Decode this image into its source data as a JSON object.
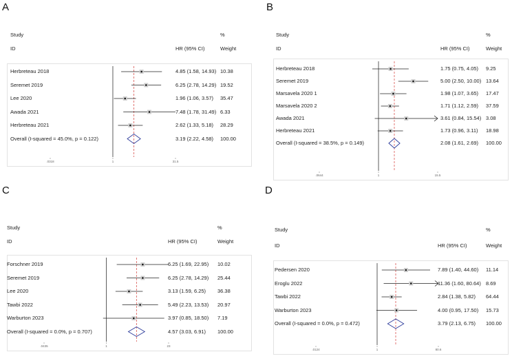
{
  "chart_data": [
    {
      "panel": "A",
      "type": "forest",
      "headers": {
        "study": "Study",
        "id": "ID",
        "hr": "HR (95% CI)",
        "pct": "%",
        "weight": "Weight"
      },
      "axis": {
        "ticks": [
          0.0318,
          1,
          31.5
        ],
        "tick_labels": [
          ".0318",
          "1",
          "31.5"
        ],
        "scale": "log"
      },
      "pooled_hr": 3.19,
      "studies": [
        {
          "name": "Herbreteau 2018",
          "hr": 4.85,
          "lo": 1.58,
          "hi": 14.93,
          "text": "4.85 (1.58, 14.93)",
          "weight": "10.38"
        },
        {
          "name": "Seremet 2019",
          "hr": 6.25,
          "lo": 2.78,
          "hi": 14.29,
          "text": "6.25 (2.78, 14.29)",
          "weight": "19.52"
        },
        {
          "name": "Lee 2020",
          "hr": 1.96,
          "lo": 1.06,
          "hi": 3.57,
          "text": "1.96 (1.06, 3.57)",
          "weight": "35.47"
        },
        {
          "name": "Awada 2021",
          "hr": 7.48,
          "lo": 1.78,
          "hi": 31.49,
          "text": "7.48 (1.78, 31.49)",
          "weight": "6.33"
        },
        {
          "name": "Herbreteau 2021",
          "hr": 2.62,
          "lo": 1.33,
          "hi": 5.18,
          "text": "2.62 (1.33, 5.18)",
          "weight": "28.29"
        }
      ],
      "overall": {
        "name": "Overall  (I-squared = 45.0%, p = 0.122)",
        "hr": 3.19,
        "lo": 2.22,
        "hi": 4.58,
        "text": "3.19 (2.22, 4.58)",
        "weight": "100.00"
      }
    },
    {
      "panel": "B",
      "type": "forest",
      "headers": {
        "study": "Study",
        "id": "ID",
        "hr": "HR (95% CI)",
        "pct": "%",
        "weight": "Weight"
      },
      "axis": {
        "ticks": [
          0.0644,
          1,
          15.5
        ],
        "tick_labels": [
          ".0644",
          "1",
          "15.5"
        ],
        "scale": "log"
      },
      "pooled_hr": 2.08,
      "studies": [
        {
          "name": "Herbreteau 2018",
          "hr": 1.75,
          "lo": 0.75,
          "hi": 4.05,
          "text": "1.75 (0.75, 4.05)",
          "weight": "9.25"
        },
        {
          "name": "Seremet 2019",
          "hr": 5.0,
          "lo": 2.5,
          "hi": 10.0,
          "text": "5.00 (2.50, 10.00)",
          "weight": "13.64"
        },
        {
          "name": "Marsavela 2020 1",
          "hr": 1.98,
          "lo": 1.07,
          "hi": 3.65,
          "text": "1.98 (1.07, 3.65)",
          "weight": "17.47"
        },
        {
          "name": "Marsavela 2020 2",
          "hr": 1.71,
          "lo": 1.12,
          "hi": 2.59,
          "text": "1.71 (1.12, 2.59)",
          "weight": "37.59"
        },
        {
          "name": "Awada 2021",
          "hr": 3.61,
          "lo": 0.84,
          "hi": 15.54,
          "text": "3.61 (0.84, 15.54)",
          "weight": "3.08"
        },
        {
          "name": "Herbreteau 2021",
          "hr": 1.73,
          "lo": 0.96,
          "hi": 3.11,
          "text": "1.73 (0.96, 3.11)",
          "weight": "18.98"
        }
      ],
      "overall": {
        "name": "Overall  (I-squared = 38.5%, p = 0.149)",
        "hr": 2.08,
        "lo": 1.61,
        "hi": 2.69,
        "text": "2.08 (1.61, 2.69)",
        "weight": "100.00"
      }
    },
    {
      "panel": "C",
      "type": "forest",
      "headers": {
        "study": "Study",
        "id": "ID",
        "hr": "HR (95% CI)",
        "pct": "%",
        "weight": "Weight"
      },
      "axis": {
        "ticks": [
          0.0435,
          1,
          23
        ],
        "tick_labels": [
          ".0435",
          "1",
          "23"
        ],
        "scale": "log"
      },
      "pooled_hr": 4.57,
      "studies": [
        {
          "name": "Forschner 2019",
          "hr": 6.25,
          "lo": 1.69,
          "hi": 22.95,
          "text": "6.25 (1.69, 22.95)",
          "weight": "10.02"
        },
        {
          "name": "Seremet 2019",
          "hr": 6.25,
          "lo": 2.78,
          "hi": 14.29,
          "text": "6.25 (2.78, 14.29)",
          "weight": "25.44"
        },
        {
          "name": "Lee 2020",
          "hr": 3.13,
          "lo": 1.59,
          "hi": 6.25,
          "text": "3.13 (1.59, 6.25)",
          "weight": "36.38"
        },
        {
          "name": "Tawbi 2022",
          "hr": 5.49,
          "lo": 2.23,
          "hi": 13.53,
          "text": "5.49 (2.23, 13.53)",
          "weight": "20.97"
        },
        {
          "name": "Warburton 2023",
          "hr": 3.97,
          "lo": 0.85,
          "hi": 18.5,
          "text": "3.97 (0.85, 18.50)",
          "weight": "7.19"
        }
      ],
      "overall": {
        "name": "Overall  (I-squared = 0.0%, p = 0.707)",
        "hr": 4.57,
        "lo": 3.03,
        "hi": 6.91,
        "text": "4.57 (3.03, 6.91)",
        "weight": "100.00"
      }
    },
    {
      "panel": "D",
      "type": "forest",
      "headers": {
        "study": "Study",
        "id": "ID",
        "hr": "HR (95% CI)",
        "pct": "%",
        "weight": "Weight"
      },
      "axis": {
        "ticks": [
          0.0124,
          1,
          80.6
        ],
        "tick_labels": [
          ".0124",
          "1",
          "80.6"
        ],
        "scale": "log"
      },
      "pooled_hr": 3.79,
      "studies": [
        {
          "name": "Pedersen 2020",
          "hr": 7.89,
          "lo": 1.4,
          "hi": 44.6,
          "text": "7.89 (1.40, 44.60)",
          "weight": "11.14"
        },
        {
          "name": "Eroglu 2022",
          "hr": 11.36,
          "lo": 1.6,
          "hi": 80.64,
          "text": "11.36 (1.60, 80.64)",
          "weight": "8.69"
        },
        {
          "name": "Tawbi 2022",
          "hr": 2.84,
          "lo": 1.38,
          "hi": 5.82,
          "text": "2.84 (1.38, 5.82)",
          "weight": "64.44"
        },
        {
          "name": "Warburton 2023",
          "hr": 4.0,
          "lo": 0.95,
          "hi": 17.5,
          "text": "4.00 (0.95, 17.50)",
          "weight": "15.73"
        }
      ],
      "overall": {
        "name": "Overall  (I-squared = 0.0%, p = 0.472)",
        "hr": 3.79,
        "lo": 2.13,
        "hi": 6.75,
        "text": "3.79 (2.13, 6.75)",
        "weight": "100.00"
      }
    }
  ]
}
